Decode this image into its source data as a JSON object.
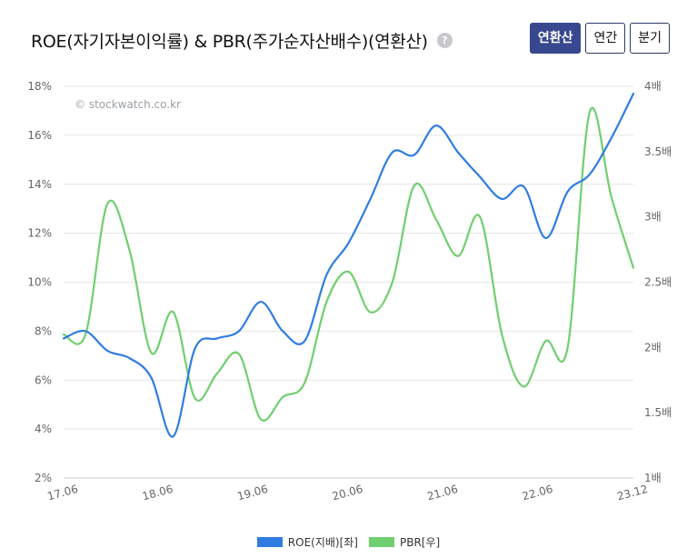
{
  "header": {
    "title": "ROE(자기자본이익률) & PBR(주가순자산배수)(연환산)",
    "help_icon": "question-icon"
  },
  "tabs": [
    {
      "label": "연환산",
      "active": true
    },
    {
      "label": "연간",
      "active": false
    },
    {
      "label": "분기",
      "active": false
    }
  ],
  "watermark": "© stockwatch.co.kr",
  "colors": {
    "roe": "#2f7de1",
    "pbr": "#6fcf6f",
    "active_tab": "#37488e"
  },
  "chart_data": {
    "type": "line",
    "x_tick_labels": [
      "17.06",
      "18.06",
      "19.06",
      "20.06",
      "21.06",
      "22.06",
      "23.12"
    ],
    "y_left": {
      "ticks": [
        "18%",
        "16%",
        "14%",
        "12%",
        "10%",
        "8%",
        "6%",
        "4%",
        "2%"
      ],
      "range": [
        2,
        18
      ]
    },
    "y_right": {
      "ticks": [
        "4배",
        "3.5배",
        "3배",
        "2.5배",
        "2배",
        "1.5배",
        "1배"
      ],
      "range": [
        1,
        4
      ]
    },
    "grid": true,
    "legend_position": "bottom",
    "series": [
      {
        "name": "ROE(지배)[좌]",
        "axis": "left",
        "values": [
          7.7,
          8.0,
          7.2,
          6.9,
          6.1,
          3.7,
          7.3,
          7.7,
          8.0,
          9.2,
          8.0,
          7.6,
          10.3,
          11.6,
          13.4,
          15.3,
          15.2,
          16.4,
          15.3,
          14.3,
          13.4,
          13.9,
          11.8,
          13.7,
          14.4,
          15.9,
          17.7
        ]
      },
      {
        "name": "PBR[우]",
        "axis": "right",
        "values": [
          2.1,
          2.1,
          3.1,
          2.75,
          1.96,
          2.27,
          1.61,
          1.8,
          1.95,
          1.45,
          1.62,
          1.73,
          2.35,
          2.58,
          2.27,
          2.5,
          3.24,
          2.98,
          2.7,
          3.0,
          2.1,
          1.7,
          2.05,
          2.0,
          3.8,
          3.15,
          2.61
        ]
      }
    ]
  }
}
